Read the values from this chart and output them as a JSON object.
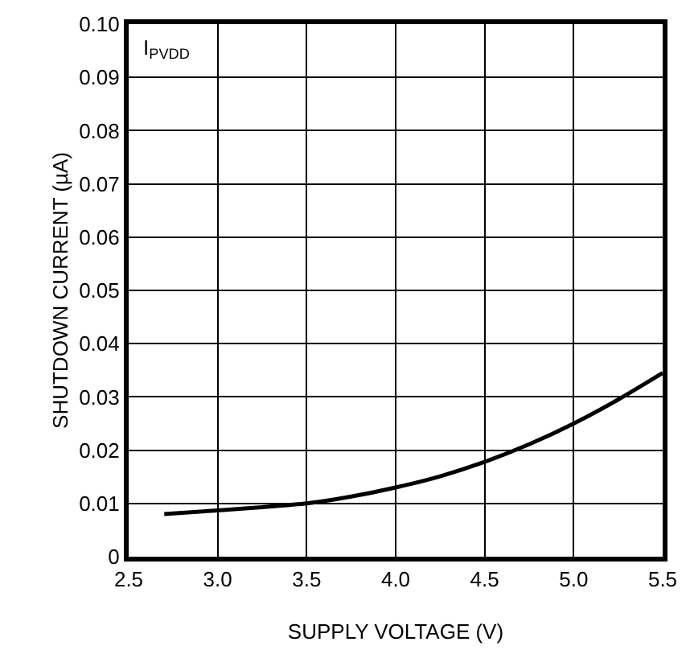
{
  "chart_data": {
    "type": "line",
    "xlabel": "SUPPLY VOLTAGE (V)",
    "ylabel": "SHUTDOWN CURRENT (µA)",
    "annotations": [
      "I$_{PVDD}$"
    ],
    "x": [
      2.7,
      3.0,
      3.25,
      3.5,
      3.75,
      4.0,
      4.25,
      4.5,
      4.75,
      5.0,
      5.25,
      5.5
    ],
    "series": [
      {
        "color": "#000000",
        "values": [
          0.008,
          0.0087,
          0.0093,
          0.01,
          0.0113,
          0.013,
          0.0151,
          0.0178,
          0.0211,
          0.025,
          0.0295,
          0.0345
        ]
      }
    ],
    "xlim": [
      2.5,
      5.5
    ],
    "xticks": [
      2.5,
      {
        "value": 3,
        "label": "3.0"
      },
      3.5,
      {
        "value": 4,
        "label": "4.0"
      },
      4.5,
      {
        "value": 5,
        "label": "5.0"
      },
      5.5
    ],
    "ylim": [
      0,
      0.1
    ],
    "yticks": [
      0,
      0.01,
      0.02,
      0.03,
      0.04,
      0.05,
      0.06,
      0.07,
      0.08,
      0.09,
      {
        "value": 0.1,
        "label": "0.10"
      }
    ],
    "grid": true,
    "marker": "none",
    "line_style": "solid"
  }
}
